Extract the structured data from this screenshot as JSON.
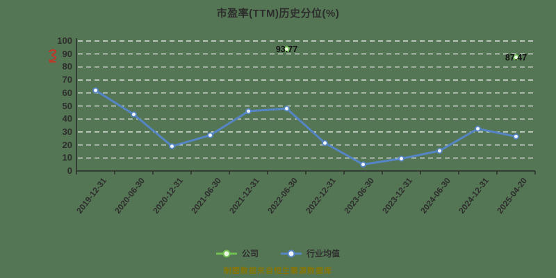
{
  "header": {
    "title": "市盈率(TTM)历史分位(%)"
  },
  "colors": {
    "background": "#557655",
    "grid": "#f5f5f5",
    "axis": "#2b2b2b",
    "text": "#2e2e2e",
    "annotation": "#141414",
    "source_note": "#8a7500",
    "red_seal": "#c43527"
  },
  "legend": {
    "items": [
      {
        "label": "公司",
        "color": "#72c154",
        "fill": "#eaf8df"
      },
      {
        "label": "行业均值",
        "color": "#5585c5",
        "fill": "#eef4fb"
      }
    ]
  },
  "footer": {
    "source_note": "制图数据来自恒生聚源数据库"
  },
  "icons": {
    "red_seal": "red-seal-watermark-icon"
  },
  "chart_data": {
    "type": "line",
    "title": "市盈率(TTM)历史分位(%)",
    "categories": [
      "2019-12-31",
      "2020-06-30",
      "2020-12-31",
      "2021-06-30",
      "2021-12-31",
      "2022-06-30",
      "2022-12-31",
      "2023-06-30",
      "2023-12-31",
      "2024-06-30",
      "2024-12-31",
      "2025-04-20"
    ],
    "series": [
      {
        "name": "公司",
        "color": "#72c154",
        "marker_fill": "#eaf8df",
        "values": [
          null,
          null,
          null,
          null,
          null,
          93.77,
          null,
          null,
          null,
          null,
          null,
          87.47
        ],
        "show_point_labels": true
      },
      {
        "name": "行业均值",
        "color": "#5585c5",
        "marker_fill": "#f2f7ff",
        "values": [
          62,
          43.5,
          19,
          27.5,
          46,
          48,
          21.5,
          5,
          9.5,
          15.5,
          32.5,
          26.5
        ],
        "show_point_labels": false
      }
    ],
    "xlabel": "",
    "ylabel": "",
    "ylim": [
      0,
      100
    ],
    "y_ticks": [
      0,
      10,
      20,
      30,
      40,
      50,
      60,
      70,
      80,
      90,
      100
    ],
    "grid": "horizontal-dashed-white",
    "legend_position": "bottom"
  }
}
